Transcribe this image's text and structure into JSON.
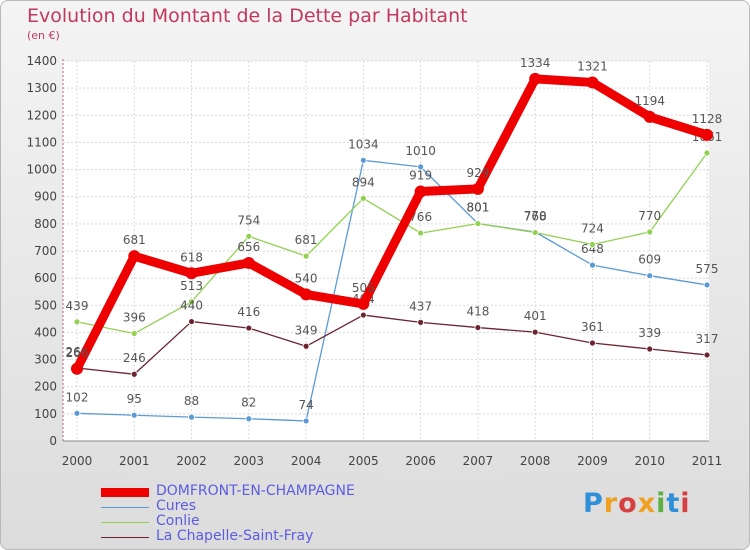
{
  "chart_data": {
    "type": "line",
    "title": "Evolution du Montant de la Dette par Habitant",
    "ylabel": "(en €)",
    "xlabel": "",
    "categories": [
      "2000",
      "2001",
      "2002",
      "2003",
      "2004",
      "2005",
      "2006",
      "2007",
      "2008",
      "2009",
      "2010",
      "2011"
    ],
    "ylim": [
      0,
      1400
    ],
    "yticks": [
      0,
      100,
      200,
      300,
      400,
      500,
      600,
      700,
      800,
      900,
      1000,
      1100,
      1200,
      1300,
      1400
    ],
    "grid": true,
    "series": [
      {
        "name": "Cures",
        "color": "#5b9bd5",
        "values": [
          102,
          95,
          88,
          82,
          74,
          1034,
          1010,
          801,
          770,
          648,
          609,
          575
        ]
      },
      {
        "name": "Conlie",
        "color": "#92d050",
        "values": [
          439,
          396,
          513,
          754,
          681,
          894,
          766,
          801,
          768,
          724,
          770,
          1061
        ]
      },
      {
        "name": "La Chapelle-Saint-Fray",
        "color": "#6b2430",
        "values": [
          269,
          246,
          440,
          416,
          349,
          464,
          437,
          418,
          401,
          361,
          339,
          317
        ]
      },
      {
        "name": "DOMFRONT-EN-CHAMPAGNE",
        "color": "#ee0000",
        "values": [
          266,
          681,
          618,
          656,
          540,
          505,
          919,
          929,
          1334,
          1321,
          1194,
          1128
        ]
      }
    ]
  },
  "legend": [
    {
      "name": "DOMFRONT-EN-CHAMPAGNE",
      "color": "#ee0000"
    },
    {
      "name": "Cures",
      "color": "#5b9bd5"
    },
    {
      "name": "Conlie",
      "color": "#92d050"
    },
    {
      "name": "La Chapelle-Saint-Fray",
      "color": "#6b2430"
    }
  ],
  "logo": "Proxiti"
}
